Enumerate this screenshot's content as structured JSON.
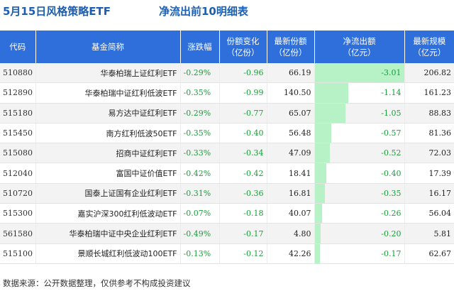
{
  "title": {
    "main": "5月15日风格策略ETF",
    "sub": "净流出前10明细表"
  },
  "colors": {
    "header_bg": "#2f6fdb",
    "title_color": "#1a5fb4",
    "negative_green": "#1a9e3a",
    "flow_bar": "#b6f2c6"
  },
  "table": {
    "headers": [
      {
        "key": "code",
        "line1": "代码",
        "line2": ""
      },
      {
        "key": "name",
        "line1": "基金简称",
        "line2": ""
      },
      {
        "key": "pct",
        "line1": "涨跌幅",
        "line2": ""
      },
      {
        "key": "share_chg",
        "line1": "份额变化",
        "line2": "（亿份）"
      },
      {
        "key": "share",
        "line1": "最新份额",
        "line2": "（亿份）"
      },
      {
        "key": "flow",
        "line1": "净流出额",
        "line2": "（亿元）"
      },
      {
        "key": "scale",
        "line1": "最新规模",
        "line2": "（亿元）"
      }
    ],
    "rows": [
      {
        "code": "510880",
        "name": "华泰柏瑞上证红利ETF",
        "pct": "-0.29%",
        "share_chg": "-0.96",
        "share": "66.19",
        "flow": "-3.01",
        "flow_value": -3.01,
        "scale": "206.82"
      },
      {
        "code": "512890",
        "name": "华泰柏瑞中证红利低波ETF",
        "pct": "-0.35%",
        "share_chg": "-0.99",
        "share": "140.50",
        "flow": "-1.14",
        "flow_value": -1.14,
        "scale": "161.23"
      },
      {
        "code": "515180",
        "name": "易方达中证红利ETF",
        "pct": "-0.29%",
        "share_chg": "-0.77",
        "share": "65.07",
        "flow": "-1.05",
        "flow_value": -1.05,
        "scale": "88.83"
      },
      {
        "code": "515450",
        "name": "南方红利低波50ETF",
        "pct": "-0.35%",
        "share_chg": "-0.40",
        "share": "56.48",
        "flow": "-0.57",
        "flow_value": -0.57,
        "scale": "81.36"
      },
      {
        "code": "515080",
        "name": "招商中证红利ETF",
        "pct": "-0.33%",
        "share_chg": "-0.34",
        "share": "47.09",
        "flow": "-0.52",
        "flow_value": -0.52,
        "scale": "72.03"
      },
      {
        "code": "512040",
        "name": "富国中证价值ETF",
        "pct": "-0.42%",
        "share_chg": "-0.42",
        "share": "18.41",
        "flow": "-0.40",
        "flow_value": -0.4,
        "scale": "17.39"
      },
      {
        "code": "510720",
        "name": "国泰上证国有企业红利ETF",
        "pct": "-0.31%",
        "share_chg": "-0.36",
        "share": "16.81",
        "flow": "-0.35",
        "flow_value": -0.35,
        "scale": "16.17"
      },
      {
        "code": "515300",
        "name": "嘉实沪深300红利低波动ETF",
        "pct": "-0.07%",
        "share_chg": "-0.18",
        "share": "40.07",
        "flow": "-0.26",
        "flow_value": -0.26,
        "scale": "56.04"
      },
      {
        "code": "561580",
        "name": "华泰柏瑞中证中央企业红利ETF",
        "pct": "-0.49%",
        "share_chg": "-0.17",
        "share": "4.80",
        "flow": "-0.20",
        "flow_value": -0.2,
        "scale": "5.81"
      },
      {
        "code": "515100",
        "name": "景顺长城红利低波动100ETF",
        "pct": "-0.13%",
        "share_chg": "-0.12",
        "share": "42.26",
        "flow": "-0.17",
        "flow_value": -0.17,
        "scale": "62.67"
      }
    ]
  },
  "footer": "数据来源：公开数据整理，仅供参考不构成投资建议"
}
